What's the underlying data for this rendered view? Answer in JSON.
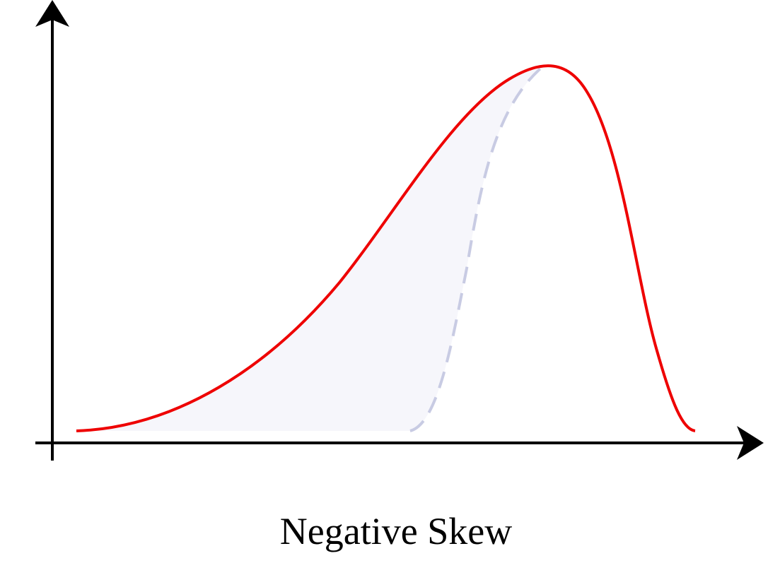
{
  "caption": "Negative Skew"
}
